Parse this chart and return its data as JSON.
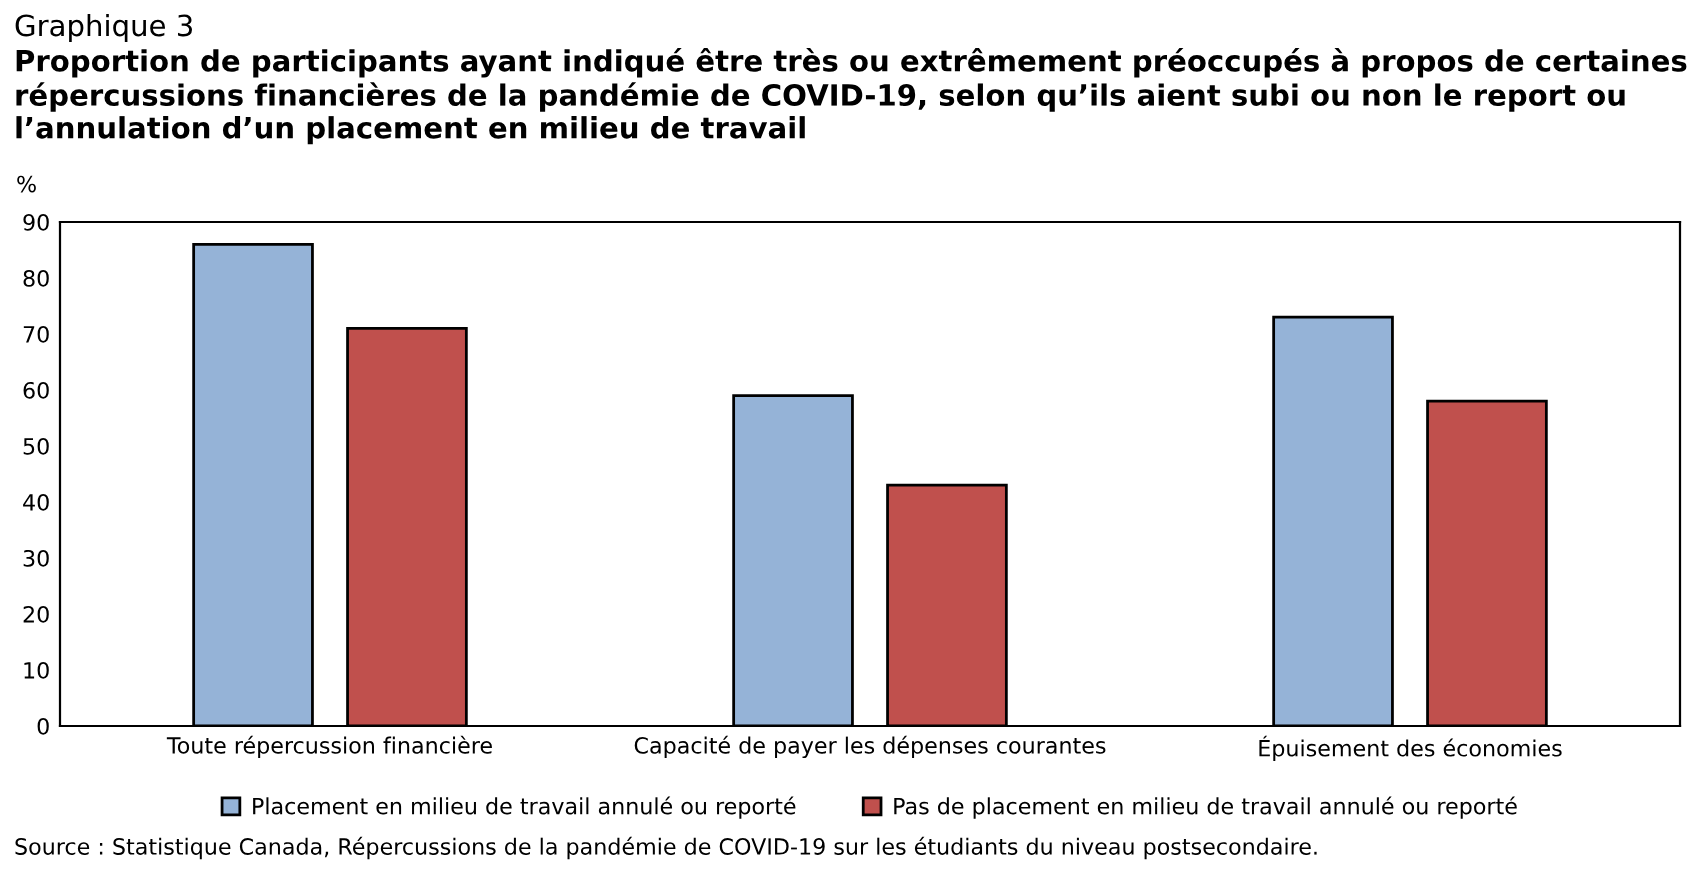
{
  "chart_data": {
    "type": "bar",
    "title": "Graphique 3",
    "subtitle": "Proportion de participants ayant indiqué être très ou extrêmement préoccupés à propos de certaines répercussions financières de la pandémie de COVID-19, selon qu’ils aient subi ou non le report ou l’annulation d’un placement en milieu de travail",
    "ylabel": "%",
    "categories": [
      "Toute répercussion financière",
      "Capacité de payer les dépenses courantes",
      "Épuisement des économies"
    ],
    "series": [
      {
        "name": "Placement en milieu de travail annulé ou reporté",
        "color": "#95b3d7",
        "values": [
          86,
          59,
          73
        ]
      },
      {
        "name": "Pas de placement en milieu de travail annulé ou reporté",
        "color": "#c0504d",
        "values": [
          71,
          43,
          58
        ]
      }
    ],
    "ylim": [
      0,
      90
    ],
    "yticks": [
      0,
      10,
      20,
      30,
      40,
      50,
      60,
      70,
      80,
      90
    ],
    "grid": false,
    "legend": "bottom",
    "annotations": [
      "Source : Statistique Canada, Répercussions de la pandémie de COVID-19 sur les étudiants du niveau postsecondaire."
    ]
  }
}
